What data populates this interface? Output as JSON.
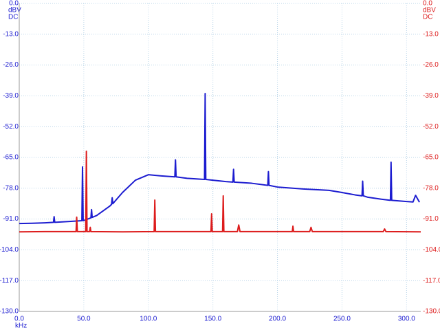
{
  "chart_data": {
    "type": "line",
    "x_label": "kHz",
    "y_unit": "dBV",
    "y_coupling": "DC",
    "y2_unit": "dBV",
    "y2_coupling": "DC",
    "xlim": [
      0,
      311
    ],
    "xticks": [
      {
        "value": 0,
        "label": "0.0"
      },
      {
        "value": 50,
        "label": "50.0"
      },
      {
        "value": 100,
        "label": "100.0"
      },
      {
        "value": 150,
        "label": "150.0"
      },
      {
        "value": 200,
        "label": "200.0"
      },
      {
        "value": 250,
        "label": "250.0"
      },
      {
        "value": 300,
        "label": "300.0"
      }
    ],
    "ylim": [
      -130,
      0
    ],
    "yticks": [
      {
        "value": 0,
        "label": "0.0"
      },
      {
        "value": -13,
        "label": "-13.0"
      },
      {
        "value": -26,
        "label": "-26.0"
      },
      {
        "value": -39,
        "label": "-39.0"
      },
      {
        "value": -52,
        "label": "-52.0"
      },
      {
        "value": -65,
        "label": "-65.0"
      },
      {
        "value": -78,
        "label": "-78.0"
      },
      {
        "value": -91,
        "label": "-91.0"
      },
      {
        "value": -104,
        "label": "-104.0"
      },
      {
        "value": -117,
        "label": "-117.0"
      },
      {
        "value": -130,
        "label": "-130.0"
      }
    ],
    "y2lim": [
      -130,
      0
    ],
    "y2ticks": [
      {
        "value": 0,
        "label": "0.0"
      },
      {
        "value": -13,
        "label": "-13.0"
      },
      {
        "value": -26,
        "label": "-26.0"
      },
      {
        "value": -39,
        "label": "-39.0"
      },
      {
        "value": -52,
        "label": "-52.0"
      },
      {
        "value": -65,
        "label": "-65.0"
      },
      {
        "value": -78,
        "label": "-78.0"
      },
      {
        "value": -91,
        "label": "-91.0"
      },
      {
        "value": -104,
        "label": "-104.0"
      },
      {
        "value": -117,
        "label": "-117.0"
      },
      {
        "value": -130,
        "label": "-130.0"
      }
    ],
    "grid": true,
    "y_color": "#1c1cd0",
    "y2_color": "#dd1c1c",
    "series": [
      {
        "color": "#1c1cd0",
        "x": [
          0,
          10,
          20,
          26.5,
          27,
          27.5,
          40,
          48.5,
          49,
          49.5,
          55.5,
          56,
          56.5,
          60,
          70,
          71.5,
          72,
          72.5,
          80,
          90,
          100,
          110,
          120.5,
          121,
          121.5,
          130,
          143.5,
          144,
          144.5,
          150,
          160,
          165.5,
          166,
          166.5,
          180,
          192.5,
          193,
          193.5,
          200,
          220,
          240,
          250,
          260,
          265.5,
          266,
          266.5,
          270,
          280,
          287.5,
          288,
          288.5,
          300,
          305,
          307,
          310
        ],
        "values": [
          -92.9,
          -92.8,
          -92.6,
          -92.4,
          -90,
          -92.4,
          -92,
          -91.7,
          -69,
          -91.7,
          -90.5,
          -87,
          -90.3,
          -89.5,
          -85.6,
          -84.8,
          -82,
          -84.5,
          -79.8,
          -74.6,
          -72.3,
          -72.8,
          -73.2,
          -66,
          -73.2,
          -73.8,
          -74.3,
          -38,
          -74.3,
          -74.6,
          -75.2,
          -75.4,
          -70,
          -75.4,
          -75.9,
          -76.8,
          -71,
          -76.8,
          -77.5,
          -78.3,
          -78.9,
          -79.8,
          -80.8,
          -81.2,
          -75,
          -81.2,
          -81.8,
          -82.6,
          -83.1,
          -67,
          -83.1,
          -83.6,
          -83.8,
          -81,
          -83.9
        ]
      },
      {
        "color": "#dd1c1c",
        "axis": "y2",
        "x": [
          0,
          20,
          44,
          44.5,
          45,
          51.5,
          52,
          52.5,
          54.5,
          55,
          55.5,
          80,
          104.5,
          105,
          105.5,
          130,
          148.5,
          149,
          149.5,
          157.5,
          158,
          158.5,
          169,
          170,
          171,
          211.5,
          212,
          212.5,
          225,
          226,
          227,
          282,
          283,
          284,
          311
        ],
        "values": [
          -96.4,
          -96.3,
          -96.3,
          -90.2,
          -96.3,
          -96.3,
          -62.4,
          -96.3,
          -96.3,
          -94.5,
          -96.3,
          -96.4,
          -96.3,
          -83,
          -96.3,
          -96.3,
          -96.3,
          -88.8,
          -96.3,
          -96.3,
          -81.2,
          -96.3,
          -96.3,
          -93.5,
          -96.3,
          -96.3,
          -94,
          -96.3,
          -96.3,
          -94.5,
          -96.3,
          -96.3,
          -95.2,
          -96.3,
          -96.4
        ]
      }
    ]
  }
}
